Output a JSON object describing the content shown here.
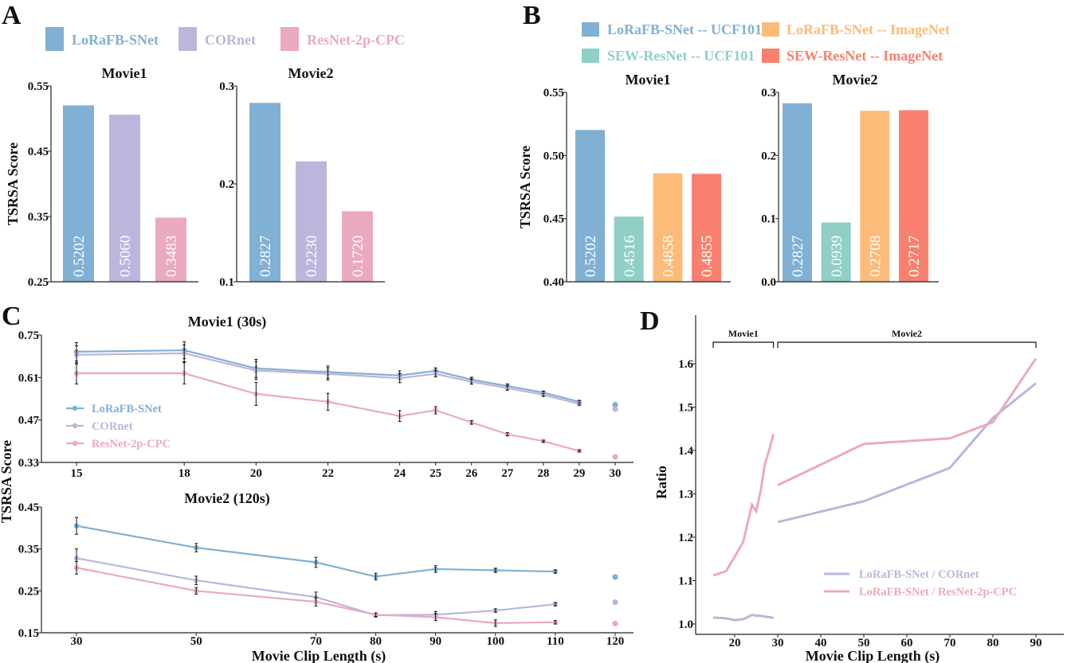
{
  "colors": {
    "lorafb": "#80b0d3",
    "cornet": "#bcb5dc",
    "resnet": "#eaa9c0",
    "sew_ucf": "#8fcfc6",
    "lorafb_imagenet": "#fdbb79",
    "sew_imagenet": "#f9806e"
  },
  "panels": {
    "A": {
      "letter": "A",
      "legend": [
        {
          "label": "LoRaFB-SNet",
          "color": "#80b0d3"
        },
        {
          "label": "CORnet",
          "color": "#bcb5dc"
        },
        {
          "label": "ResNet-2p-CPC",
          "color": "#eaa9c0"
        }
      ]
    },
    "B": {
      "letter": "B",
      "legend": [
        {
          "label": "LoRaFB-SNet -- UCF101",
          "color": "#80b0d3"
        },
        {
          "label": "SEW-ResNet -- UCF101",
          "color": "#8fcfc6"
        },
        {
          "label": "LoRaFB-SNet -- ImageNet",
          "color": "#fdbb79"
        },
        {
          "label": "SEW-ResNet -- ImageNet",
          "color": "#f9806e"
        }
      ]
    },
    "C": {
      "letter": "C",
      "legend": [
        {
          "label": "LoRaFB-SNet",
          "color": "#80b0d3"
        },
        {
          "label": "CORnet",
          "color": "#bcb5dc"
        },
        {
          "label": "ResNet-2p-CPC",
          "color": "#eaa9c0"
        }
      ]
    },
    "D": {
      "letter": "D",
      "legend": [
        {
          "label": "LoRaFB-SNet / CORnet",
          "color": "#bcb5dc"
        },
        {
          "label": "LoRaFB-SNet / ResNet-2p-CPC",
          "color": "#eaa9c0"
        }
      ]
    }
  },
  "chart_data": [
    {
      "panel": "A",
      "type": "bar",
      "title": "Movie1",
      "ylabel": "TSRSA Score",
      "categories": [
        "LoRaFB-SNet",
        "CORnet",
        "ResNet-2p-CPC"
      ],
      "values": [
        0.5202,
        0.506,
        0.3483
      ],
      "value_labels": [
        "0.5202",
        "0.5060",
        "0.3483"
      ],
      "colors": [
        "#80b0d3",
        "#bcb5dc",
        "#eaa9c0"
      ],
      "ylim": [
        0.25,
        0.55
      ],
      "yticks": [
        "0.55",
        "0.45",
        "0.35",
        "0.25"
      ]
    },
    {
      "panel": "A",
      "type": "bar",
      "title": "Movie2",
      "ylabel": "",
      "categories": [
        "LoRaFB-SNet",
        "CORnet",
        "ResNet-2p-CPC"
      ],
      "values": [
        0.2827,
        0.223,
        0.172
      ],
      "value_labels": [
        "0.2827",
        "0.2230",
        "0.1720"
      ],
      "colors": [
        "#80b0d3",
        "#bcb5dc",
        "#eaa9c0"
      ],
      "ylim": [
        0.1,
        0.3
      ],
      "yticks": [
        "0.3",
        "0.2",
        "0.1"
      ]
    },
    {
      "panel": "B",
      "type": "bar",
      "title": "Movie1",
      "ylabel": "TSRSA Score",
      "categories": [
        "LoRaFB-SNet -- UCF101",
        "SEW-ResNet -- UCF101",
        "LoRaFB-SNet -- ImageNet",
        "SEW-ResNet -- ImageNet"
      ],
      "values": [
        0.5202,
        0.4516,
        0.4858,
        0.4855
      ],
      "value_labels": [
        "0.5202",
        "0.4516",
        "0.4858",
        "0.4855"
      ],
      "colors": [
        "#80b0d3",
        "#8fcfc6",
        "#fdbb79",
        "#f9806e"
      ],
      "ylim": [
        0.4,
        0.55
      ],
      "yticks": [
        "0.55",
        "0.50",
        "0.45",
        "0.40"
      ]
    },
    {
      "panel": "B",
      "type": "bar",
      "title": "Movie2",
      "ylabel": "",
      "categories": [
        "LoRaFB-SNet -- UCF101",
        "SEW-ResNet -- UCF101",
        "LoRaFB-SNet -- ImageNet",
        "SEW-ResNet -- ImageNet"
      ],
      "values": [
        0.2827,
        0.0939,
        0.2708,
        0.2717
      ],
      "value_labels": [
        "0.2827",
        "0.0939",
        "0.2708",
        "0.2717"
      ],
      "colors": [
        "#80b0d3",
        "#8fcfc6",
        "#fdbb79",
        "#f9806e"
      ],
      "ylim": [
        0.0,
        0.3
      ],
      "yticks": [
        "0.3",
        "0.2",
        "0.1",
        "0.0"
      ]
    },
    {
      "panel": "C",
      "type": "line",
      "title": "Movie1 (30s)",
      "ylabel": "TSRSA Score",
      "xlabel": "",
      "xlim": [
        15,
        30
      ],
      "xticks": [
        "15",
        "18",
        "20",
        "22",
        "24",
        "25",
        "26",
        "27",
        "28",
        "29",
        "30"
      ],
      "ylim": [
        0.33,
        0.75
      ],
      "yticks": [
        "0.75",
        "0.61",
        "0.47",
        "0.33"
      ],
      "x": [
        15,
        18,
        20,
        22,
        24,
        25,
        26,
        27,
        28,
        29
      ],
      "full_length_x": 30,
      "series": [
        {
          "name": "LoRaFB-SNet",
          "color": "#80b0d3",
          "values": [
            0.695,
            0.7,
            0.64,
            0.628,
            0.617,
            0.632,
            0.603,
            0.582,
            0.56,
            0.53
          ],
          "err": [
            0.03,
            0.028,
            0.03,
            0.02,
            0.015,
            0.01,
            0.008,
            0.007,
            0.005,
            0.004
          ],
          "full_length": 0.52
        },
        {
          "name": "CORnet",
          "color": "#bcb5dc",
          "values": [
            0.685,
            0.69,
            0.633,
            0.622,
            0.608,
            0.622,
            0.596,
            0.575,
            0.553,
            0.523
          ],
          "err": [
            0.03,
            0.028,
            0.03,
            0.02,
            0.015,
            0.01,
            0.008,
            0.007,
            0.005,
            0.004
          ],
          "full_length": 0.506
        },
        {
          "name": "ResNet-2p-CPC",
          "color": "#eaa9c0",
          "values": [
            0.624,
            0.624,
            0.556,
            0.53,
            0.483,
            0.502,
            0.462,
            0.423,
            0.4,
            0.368
          ],
          "err": [
            0.035,
            0.035,
            0.038,
            0.028,
            0.018,
            0.012,
            0.006,
            0.005,
            0.003,
            0.003
          ],
          "full_length": 0.348
        }
      ],
      "legend": "left"
    },
    {
      "panel": "C",
      "type": "line",
      "title": "Movie2 (120s)",
      "ylabel": "TSRSA Score",
      "xlabel": "Movie Clip Length (s)",
      "xlim": [
        30,
        120
      ],
      "xticks": [
        "30",
        "50",
        "70",
        "80",
        "90",
        "100",
        "110",
        "120"
      ],
      "ylim": [
        0.15,
        0.45
      ],
      "yticks": [
        "0.45",
        "0.35",
        "0.25",
        "0.15"
      ],
      "x": [
        30,
        50,
        70,
        80,
        90,
        100,
        110
      ],
      "full_length_x": 120,
      "series": [
        {
          "name": "LoRaFB-SNet",
          "color": "#80b0d3",
          "values": [
            0.405,
            0.353,
            0.318,
            0.284,
            0.302,
            0.299,
            0.296
          ],
          "err": [
            0.02,
            0.01,
            0.012,
            0.008,
            0.008,
            0.005,
            0.004
          ],
          "full_length": 0.283
        },
        {
          "name": "CORnet",
          "color": "#bcb5dc",
          "values": [
            0.328,
            0.275,
            0.235,
            0.192,
            0.193,
            0.203,
            0.218
          ],
          "err": [
            0.022,
            0.01,
            0.012,
            0.005,
            0.008,
            0.004,
            0.004
          ],
          "full_length": 0.223
        },
        {
          "name": "ResNet-2p-CPC",
          "color": "#eaa9c0",
          "values": [
            0.305,
            0.25,
            0.224,
            0.193,
            0.187,
            0.173,
            0.175
          ],
          "err": [
            0.015,
            0.008,
            0.01,
            0.004,
            0.008,
            0.008,
            0.004
          ],
          "full_length": 0.172
        }
      ]
    },
    {
      "panel": "D",
      "type": "line",
      "title": "",
      "ylabel": "Ratio",
      "xlabel": "Movie Clip Length (s)",
      "xlim": [
        20,
        90
      ],
      "xticks": [
        "20",
        "30",
        "40",
        "50",
        "60",
        "70",
        "80",
        "90"
      ],
      "ylim": [
        1.0,
        1.6
      ],
      "yticks": [
        "1.6",
        "1.5",
        "1.4",
        "1.3",
        "1.2",
        "1.1",
        "1.0"
      ],
      "annotations": [
        {
          "label": "Movie1",
          "range": [
            15,
            29
          ]
        },
        {
          "label": "Movie2",
          "range": [
            30,
            90
          ]
        }
      ],
      "series": [
        {
          "name": "LoRaFB-SNet / CORnet",
          "color": "#bcb5dc",
          "segments": [
            {
              "x": [
                15,
                18,
                20,
                22,
                24,
                25,
                26,
                27,
                28,
                29
              ],
              "y": [
                1.015,
                1.013,
                1.009,
                1.011,
                1.021,
                1.019,
                1.019,
                1.017,
                1.016,
                1.014
              ]
            },
            {
              "x": [
                30,
                50,
                70,
                80,
                90
              ],
              "y": [
                1.235,
                1.283,
                1.36,
                1.475,
                1.555
              ]
            }
          ]
        },
        {
          "name": "LoRaFB-SNet / ResNet-2p-CPC",
          "color": "#eaa9c0",
          "segments": [
            {
              "x": [
                15,
                18,
                20,
                22,
                24,
                25,
                26,
                27,
                28,
                29
              ],
              "y": [
                1.112,
                1.122,
                1.155,
                1.19,
                1.275,
                1.26,
                1.305,
                1.368,
                1.4,
                1.438
              ]
            },
            {
              "x": [
                30,
                50,
                70,
                80,
                90
              ],
              "y": [
                1.32,
                1.415,
                1.428,
                1.465,
                1.612
              ]
            }
          ]
        }
      ],
      "legend": "lower-right"
    }
  ]
}
